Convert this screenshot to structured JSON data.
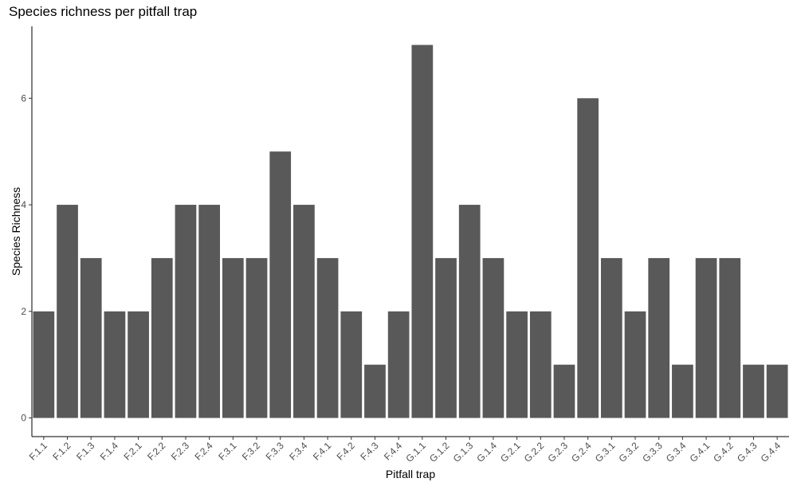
{
  "chart_data": {
    "type": "bar",
    "title": "Species richness per pitfall trap",
    "xlabel": "Pitfall trap",
    "ylabel": "Species Richness",
    "categories": [
      "F.1.1",
      "F.1.2",
      "F.1.3",
      "F.1.4",
      "F.2.1",
      "F.2.2",
      "F.2.3",
      "F.2.4",
      "F.3.1",
      "F.3.2",
      "F.3.3",
      "F.3.4",
      "F.4.1",
      "F.4.2",
      "F.4.3",
      "F.4.4",
      "G.1.1",
      "G.1.2",
      "G.1.3",
      "G.1.4",
      "G.2.1",
      "G.2.2",
      "G.2.3",
      "G.2.4",
      "G.3.1",
      "G.3.2",
      "G.3.3",
      "G.3.4",
      "G.4.1",
      "G.4.2",
      "G.4.3",
      "G.4.4"
    ],
    "values": [
      2,
      4,
      3,
      2,
      2,
      3,
      4,
      4,
      3,
      3,
      5,
      4,
      3,
      2,
      1,
      2,
      7,
      3,
      4,
      3,
      2,
      2,
      1,
      6,
      3,
      2,
      3,
      1,
      3,
      3,
      1,
      1
    ],
    "yticks": [
      0,
      2,
      4,
      6
    ],
    "ylim": [
      -0.35,
      7.35
    ],
    "bar_color": "#595959",
    "grid": false,
    "legend": "none"
  }
}
